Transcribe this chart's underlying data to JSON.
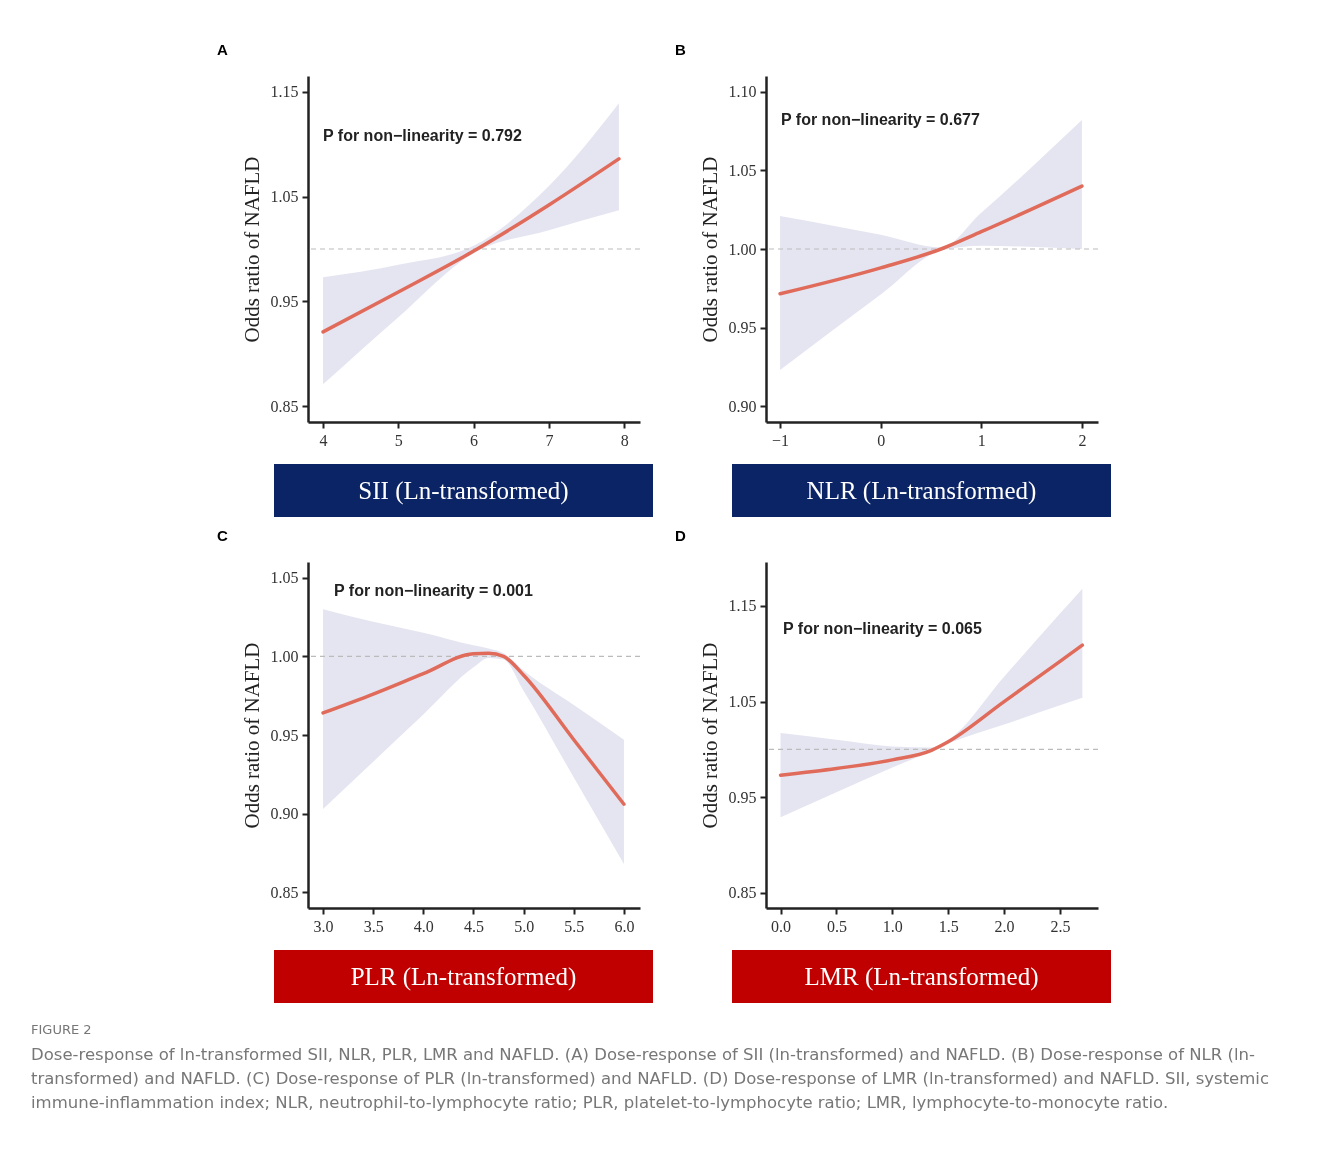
{
  "chart_data": [
    {
      "type": "line",
      "title": "A",
      "xlabel": "SII (Ln-transformed)",
      "ylabel": "Odds ratio of NAFLD",
      "annotations": [
        "P for non−linearity = 0.792"
      ],
      "xlim": [
        3.8,
        8.21
      ],
      "xticks": [
        4,
        5,
        6,
        7,
        8
      ],
      "ylim": [
        0.835,
        1.165
      ],
      "yticks": [
        0.85,
        0.95,
        1.05,
        1.15
      ],
      "ref_lines": [
        {
          "axis": "y",
          "value": 1,
          "line_style": "dashed",
          "color": "#bbbbbb"
        }
      ],
      "series": [
        {
          "color": "#e06b5a",
          "x": [
            4,
            5,
            6,
            7,
            7.93
          ],
          "values": [
            0.921,
            0.959,
            0.998,
            1.042,
            1.086
          ],
          "lower": [
            0.871,
            0.935,
            0.996,
            1.018,
            1.037
          ],
          "upper": [
            0.973,
            0.985,
            1.003,
            1.06,
            1.139
          ]
        }
      ]
    },
    {
      "type": "line",
      "title": "B",
      "xlabel": "NLR (Ln-transformed)",
      "ylabel": "Odds ratio of NAFLD",
      "annotations": [
        "P for non−linearity = 0.677"
      ],
      "xlim": [
        -1.14,
        2.16
      ],
      "xticks": [
        {
          "value": -1,
          "label": "−1"
        },
        0,
        1,
        2
      ],
      "ylim": [
        0.89,
        1.11
      ],
      "yticks": [
        {
          "value": 0.9,
          "label": "0.90"
        },
        0.95,
        {
          "value": 1,
          "label": "1.00"
        },
        1.05,
        {
          "value": 1.1,
          "label": "1.10"
        }
      ],
      "ref_lines": [
        {
          "axis": "y",
          "value": 1,
          "line_style": "dashed",
          "color": "#bbbbbb"
        }
      ],
      "series": [
        {
          "color": "#e06b5a",
          "x": [
            -1,
            0,
            0.6,
            1,
            2
          ],
          "values": [
            0.9715,
            0.988,
            1.0,
            1.011,
            1.04
          ],
          "lower": [
            0.923,
            0.971,
            0.999,
            1.002,
            1.0
          ],
          "upper": [
            1.021,
            1.009,
            1.001,
            1.023,
            1.082
          ]
        }
      ]
    },
    {
      "type": "line",
      "title": "C",
      "xlabel": "PLR (Ln-transformed)",
      "ylabel": "Odds ratio of NAFLD",
      "annotations": [
        "P for non−linearity = 0.001"
      ],
      "xlim": [
        2.85,
        6.16
      ],
      "xticks": [
        {
          "value": 3,
          "label": "3.0"
        },
        3.5,
        {
          "value": 4,
          "label": "4.0"
        },
        4.5,
        {
          "value": 5,
          "label": "5.0"
        },
        5.5,
        {
          "value": 6,
          "label": "6.0"
        }
      ],
      "ylim": [
        0.84,
        1.06
      ],
      "yticks": [
        0.85,
        {
          "value": 0.9,
          "label": "0.90"
        },
        0.95,
        {
          "value": 1,
          "label": "1.00"
        },
        1.05
      ],
      "ref_lines": [
        {
          "axis": "y",
          "value": 1,
          "line_style": "dashed",
          "color": "#bbbbbb"
        }
      ],
      "series": [
        {
          "color": "#e06b5a",
          "x": [
            3,
            3.5,
            4,
            4.5,
            4.65,
            4.8,
            5,
            5.5,
            6
          ],
          "values": [
            0.964,
            0.976,
            0.989,
            1.0017,
            1.002,
            1.0,
            0.988,
            0.947,
            0.906
          ],
          "lower": [
            0.903,
            0.933,
            0.963,
            0.993,
            0.999,
            0.998,
            0.978,
            0.923,
            0.868
          ],
          "upper": [
            1.03,
            1.022,
            1.015,
            1.007,
            1.005,
            1.002,
            0.991,
            0.969,
            0.947
          ]
        }
      ]
    },
    {
      "type": "line",
      "title": "D",
      "xlabel": "LMR (Ln-transformed)",
      "ylabel": "Odds ratio of NAFLD",
      "annotations": [
        "P for non−linearity = 0.065"
      ],
      "xlim": [
        -0.13,
        2.84
      ],
      "xticks": [
        {
          "value": 0,
          "label": "0.0"
        },
        0.5,
        {
          "value": 1,
          "label": "1.0"
        },
        1.5,
        {
          "value": 2,
          "label": "2.0"
        },
        2.5
      ],
      "ylim": [
        0.834,
        1.196
      ],
      "yticks": [
        0.85,
        0.95,
        1.05,
        1.15
      ],
      "ref_lines": [
        {
          "axis": "y",
          "value": 1,
          "line_style": "dashed",
          "color": "#bbbbbb"
        }
      ],
      "series": [
        {
          "color": "#e06b5a",
          "x": [
            0,
            0.5,
            1,
            1.35,
            1.5,
            2,
            2.5,
            2.7
          ],
          "values": [
            0.973,
            0.98,
            0.989,
            0.999,
            1.008,
            1.05,
            1.092,
            1.109
          ],
          "lower": [
            0.929,
            0.955,
            0.981,
            0.998,
            1.006,
            1.026,
            1.046,
            1.054
          ],
          "upper": [
            1.017,
            1.01,
            1.003,
            1.002,
            1.01,
            1.076,
            1.142,
            1.168
          ]
        }
      ]
    },
    {
      "type": "other",
      "title": "FIGURE 2",
      "annotations": [
        "Dose-response of ln-transformed SII, NLR, PLR, LMR and NAFLD. (A) Dose-response of SII (ln-transformed) and NAFLD. (B) Dose-response of NLR (ln-transformed) and NAFLD. (C) Dose-response of PLR (ln-transformed) and NAFLD. (D) Dose-response of LMR (ln-transformed) and NAFLD. SII, systemic immune-inflammation index; NLR, neutrophil-to-lymphocyte ratio; PLR, platelet-to-lymphocyte ratio; LMR, lymphocyte-to-monocyte ratio."
      ]
    }
  ]
}
